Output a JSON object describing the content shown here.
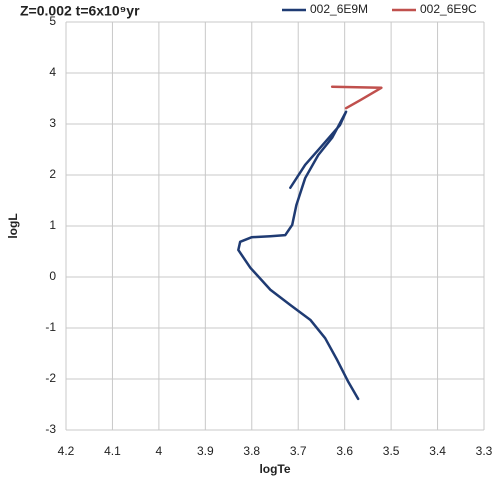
{
  "chart_data": {
    "type": "line",
    "title": "Z=0.002 t=6x10⁹yr",
    "x_label": "logTe",
    "y_label": "logL",
    "xlim": [
      4.2,
      3.3
    ],
    "xticks": [
      4.2,
      4.1,
      4,
      3.9,
      3.8,
      3.7,
      3.6,
      3.5,
      3.4,
      3.3
    ],
    "ylim": [
      -3,
      5
    ],
    "yticks": [
      -3,
      -2,
      -1,
      0,
      1,
      2,
      3,
      4,
      5
    ],
    "grid": true,
    "series": [
      {
        "name": "002_6E9M",
        "color": "#1f3b73",
        "x": [
          3.571,
          3.592,
          3.616,
          3.642,
          3.674,
          3.717,
          3.76,
          3.803,
          3.829,
          3.825,
          3.8,
          3.76,
          3.728,
          3.713,
          3.704,
          3.685,
          3.657,
          3.627,
          3.597,
          3.61,
          3.653,
          3.685,
          3.717
        ],
        "values": [
          -2.39,
          -2.06,
          -1.63,
          -1.2,
          -0.84,
          -0.55,
          -0.25,
          0.18,
          0.53,
          0.69,
          0.78,
          0.8,
          0.82,
          1.02,
          1.41,
          1.94,
          2.39,
          2.73,
          3.24,
          2.98,
          2.53,
          2.2,
          1.75
        ]
      },
      {
        "name": "002_6E9C",
        "color": "#c0504d",
        "x": [
          3.597,
          3.566,
          3.521,
          3.627
        ],
        "values": [
          3.31,
          3.47,
          3.71,
          3.73
        ]
      }
    ]
  }
}
